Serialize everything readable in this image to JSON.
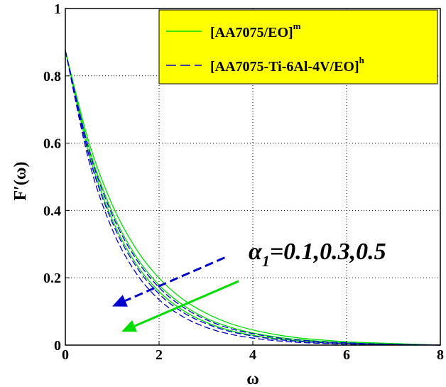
{
  "chart_data": {
    "type": "line",
    "title": "",
    "xlabel": "ω",
    "ylabel": "F′(ω)",
    "xlim": [
      0,
      8
    ],
    "ylim": [
      0,
      1
    ],
    "xticks": [
      "0",
      "2",
      "4",
      "6",
      "8"
    ],
    "yticks": [
      "0",
      "0.2",
      "0.4",
      "0.6",
      "0.8",
      "1"
    ],
    "grid": true,
    "grid_style": "dotted",
    "legend": {
      "placement": "top-right",
      "background": "#ffff00",
      "entries": [
        {
          "label": "[AA7075/EO]",
          "sup": "m",
          "color": "#00dd00",
          "style": "solid"
        },
        {
          "label": "[AA7075-Ti-6Al-4V/EO]",
          "sup": "h",
          "color": "#0000cc",
          "style": "dashed"
        }
      ]
    },
    "annotation": {
      "prefix": "α",
      "sub": "1",
      "text": "=0.1,0.3,0.5"
    },
    "arrows": [
      {
        "color": "#0000cc",
        "style": "dashed",
        "from": [
          3.4,
          0.26
        ],
        "to": [
          1.0,
          0.115
        ]
      },
      {
        "color": "#00dd00",
        "style": "solid",
        "from": [
          3.7,
          0.19
        ],
        "to": [
          1.2,
          0.04
        ]
      }
    ],
    "series": [
      {
        "name": "[AA7075/EO]",
        "param": 0.1,
        "color": "#00dd00",
        "style": "solid",
        "x": [
          0,
          0.5,
          1,
          1.5,
          2,
          2.5,
          3,
          3.5,
          4,
          4.5,
          5,
          5.5,
          6,
          6.5
        ],
        "y": [
          0.875,
          0.604,
          0.417,
          0.288,
          0.199,
          0.137,
          0.095,
          0.065,
          0.045,
          0.031,
          0.021,
          0.015,
          0.01,
          0.007
        ]
      },
      {
        "name": "[AA7075/EO]",
        "param": 0.3,
        "color": "#00dd00",
        "style": "solid",
        "x": [
          0,
          0.5,
          1,
          1.5,
          2,
          2.5,
          3,
          3.5,
          4,
          4.5,
          5,
          5.5,
          6,
          6.5
        ],
        "y": [
          0.875,
          0.588,
          0.395,
          0.265,
          0.178,
          0.12,
          0.08,
          0.054,
          0.036,
          0.024,
          0.016,
          0.011,
          0.007,
          0.005
        ]
      },
      {
        "name": "[AA7075/EO]",
        "param": 0.5,
        "color": "#00dd00",
        "style": "solid",
        "x": [
          0,
          0.5,
          1,
          1.5,
          2,
          2.5,
          3,
          3.5,
          4,
          4.5,
          5,
          5.5,
          6,
          6.5
        ],
        "y": [
          0.875,
          0.571,
          0.373,
          0.243,
          0.159,
          0.104,
          0.068,
          0.044,
          0.029,
          0.019,
          0.012,
          0.008,
          0.005,
          0.003
        ]
      },
      {
        "name": "[AA7075-Ti-6Al-4V/EO]",
        "param": 0.1,
        "color": "#0000cc",
        "style": "dashed",
        "x": [
          0,
          0.5,
          1,
          1.5,
          2,
          2.5,
          3,
          3.5,
          4,
          4.5,
          5,
          5.5,
          6,
          6.5
        ],
        "y": [
          0.875,
          0.582,
          0.387,
          0.258,
          0.171,
          0.114,
          0.076,
          0.05,
          0.034,
          0.022,
          0.015,
          0.01,
          0.007,
          0.004
        ]
      },
      {
        "name": "[AA7075-Ti-6Al-4V/EO]",
        "param": 0.3,
        "color": "#0000cc",
        "style": "dashed",
        "x": [
          0,
          0.5,
          1,
          1.5,
          2,
          2.5,
          3,
          3.5,
          4,
          4.5,
          5,
          5.5,
          6,
          6.5
        ],
        "y": [
          0.875,
          0.565,
          0.365,
          0.236,
          0.152,
          0.098,
          0.064,
          0.041,
          0.027,
          0.017,
          0.011,
          0.007,
          0.005,
          0.003
        ]
      },
      {
        "name": "[AA7075-Ti-6Al-4V/EO]",
        "param": 0.5,
        "color": "#0000cc",
        "style": "dashed",
        "x": [
          0,
          0.5,
          1,
          1.5,
          2,
          2.5,
          3,
          3.5,
          4,
          4.5,
          5,
          5.5,
          6,
          6.5
        ],
        "y": [
          0.875,
          0.549,
          0.344,
          0.216,
          0.135,
          0.085,
          0.053,
          0.033,
          0.021,
          0.013,
          0.008,
          0.005,
          0.003,
          0.002
        ]
      }
    ]
  }
}
